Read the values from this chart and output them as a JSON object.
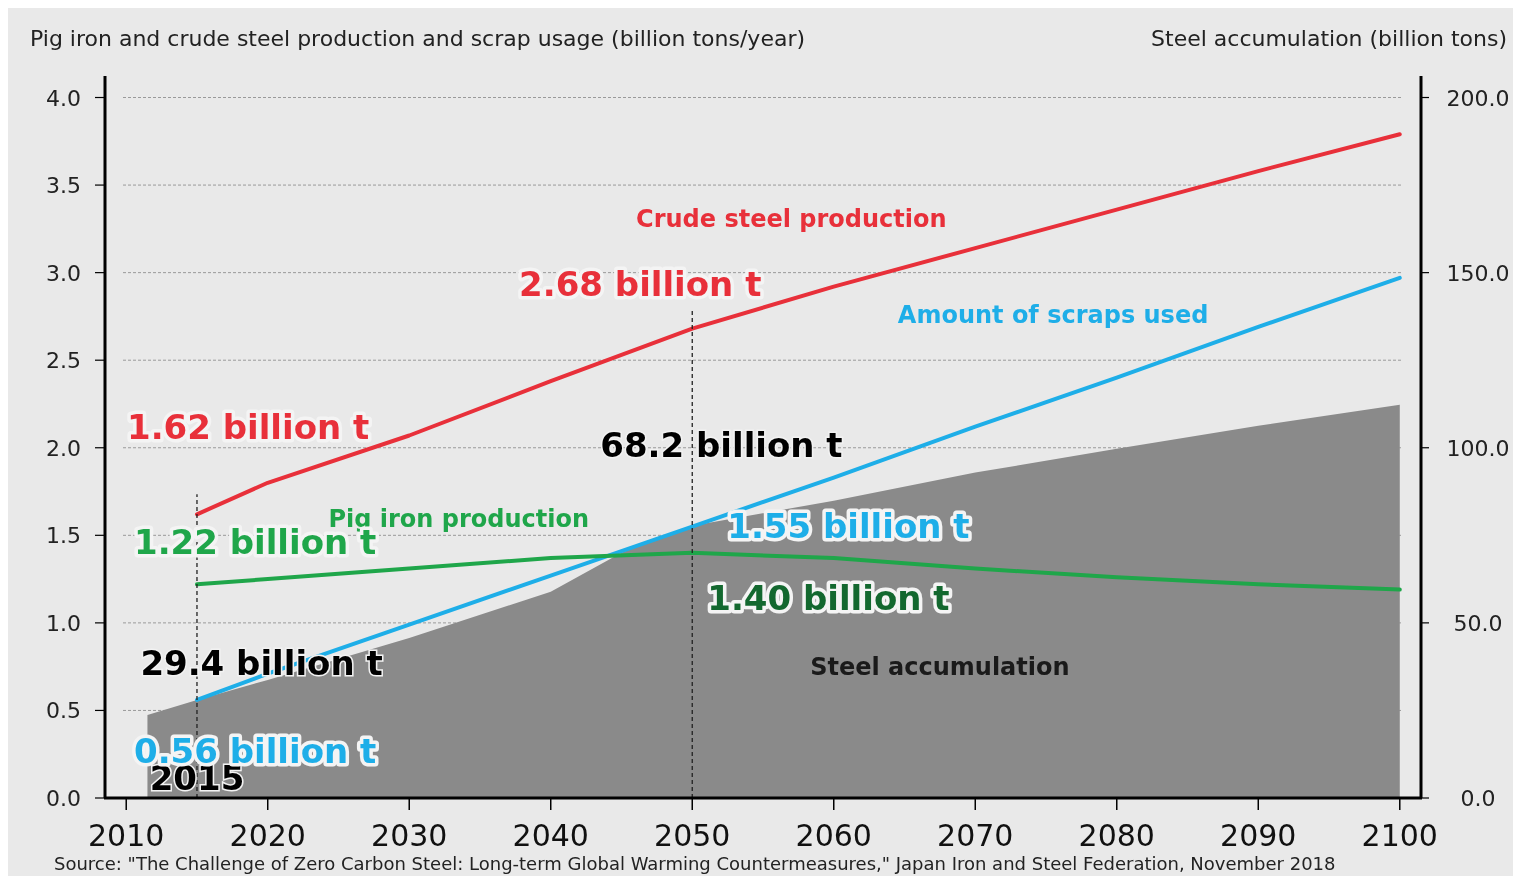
{
  "chart_data": {
    "type": "line",
    "ylabel": "Pig iron and crude steel production and scrap usage (billion tons/year)",
    "y2label": "Steel accumulation (billion tons)",
    "xlim": [
      2008.5,
      2101.5
    ],
    "xticks": [
      2010,
      2020,
      2030,
      2040,
      2050,
      2060,
      2070,
      2080,
      2090,
      2100
    ],
    "ylim": [
      0,
      4.1
    ],
    "yticks": [
      {
        "value": 0,
        "label": "0.0"
      },
      {
        "value": 0.5,
        "label": "0.5"
      },
      {
        "value": 1,
        "label": "1.0"
      },
      {
        "value": 1.5,
        "label": "1.5"
      },
      {
        "value": 2,
        "label": "2.0"
      },
      {
        "value": 2.5,
        "label": "2.5"
      },
      {
        "value": 3,
        "label": "3.0"
      },
      {
        "value": 3.5,
        "label": "3.5"
      },
      {
        "value": 4,
        "label": "4.0"
      }
    ],
    "y2lim": [
      0,
      205
    ],
    "y2ticks": [
      {
        "value": 0,
        "label": "0.0"
      },
      {
        "value": 50,
        "label": "50.0"
      },
      {
        "value": 100,
        "label": "100.0"
      },
      {
        "value": 150,
        "label": "150.0"
      },
      {
        "value": 200,
        "label": "200.0"
      }
    ],
    "grid": "y",
    "series": [
      {
        "name": "Steel accumulation",
        "type": "area",
        "axis": "y2",
        "color": "#8a8a8a",
        "x": [
          2011.5,
          2015,
          2020,
          2030,
          2040,
          2045,
          2050,
          2060,
          2070,
          2080,
          2090,
          2100
        ],
        "values": [
          23.7,
          28,
          33.7,
          45.7,
          58.9,
          70,
          77.7,
          84.9,
          92.9,
          99.7,
          106.3,
          112.3
        ]
      },
      {
        "name": "Crude steel production",
        "color": "#e8303a",
        "x": [
          2015,
          2020,
          2030,
          2040,
          2050,
          2060,
          2070,
          2080,
          2090,
          2100
        ],
        "values": [
          1.62,
          1.8,
          2.07,
          2.38,
          2.68,
          2.92,
          3.14,
          3.36,
          3.58,
          3.79
        ],
        "value_labels": [
          "1.62 billion t",
          null,
          null,
          null,
          "2.68 billion t",
          null,
          null,
          null,
          null,
          null
        ]
      },
      {
        "name": "Amount of scraps used",
        "color": "#1eaee8",
        "x": [
          2015,
          2020,
          2030,
          2040,
          2050,
          2060,
          2070,
          2080,
          2090,
          2100
        ],
        "values": [
          0.56,
          0.71,
          0.99,
          1.27,
          1.55,
          1.83,
          2.12,
          2.4,
          2.69,
          2.97
        ],
        "value_labels": [
          "0.56 billion t",
          null,
          null,
          null,
          "1.55 billion t",
          null,
          null,
          null,
          null,
          null
        ]
      },
      {
        "name": "Pig iron production",
        "color": "#1fa64a",
        "x": [
          2015,
          2020,
          2030,
          2040,
          2050,
          2060,
          2070,
          2080,
          2090,
          2100
        ],
        "values": [
          1.22,
          1.25,
          1.31,
          1.37,
          1.4,
          1.37,
          1.31,
          1.26,
          1.22,
          1.19
        ],
        "value_labels": [
          "1.22 billion t",
          null,
          null,
          null,
          "1.40 billion t",
          null,
          null,
          null,
          null,
          null
        ]
      }
    ],
    "ref_lines": [
      {
        "axis": "x",
        "value": 2015,
        "label": "2015",
        "line_style": "dashed"
      },
      {
        "axis": "x",
        "value": 2050,
        "line_style": "dashed"
      }
    ],
    "annotations": [
      "29.4 billion t",
      "68.2 billion t",
      "Source: \"The Challenge of Zero Carbon Steel: Long-term Global Warming Countermeasures,\" Japan Iron and Steel Federation, November 2018"
    ]
  }
}
